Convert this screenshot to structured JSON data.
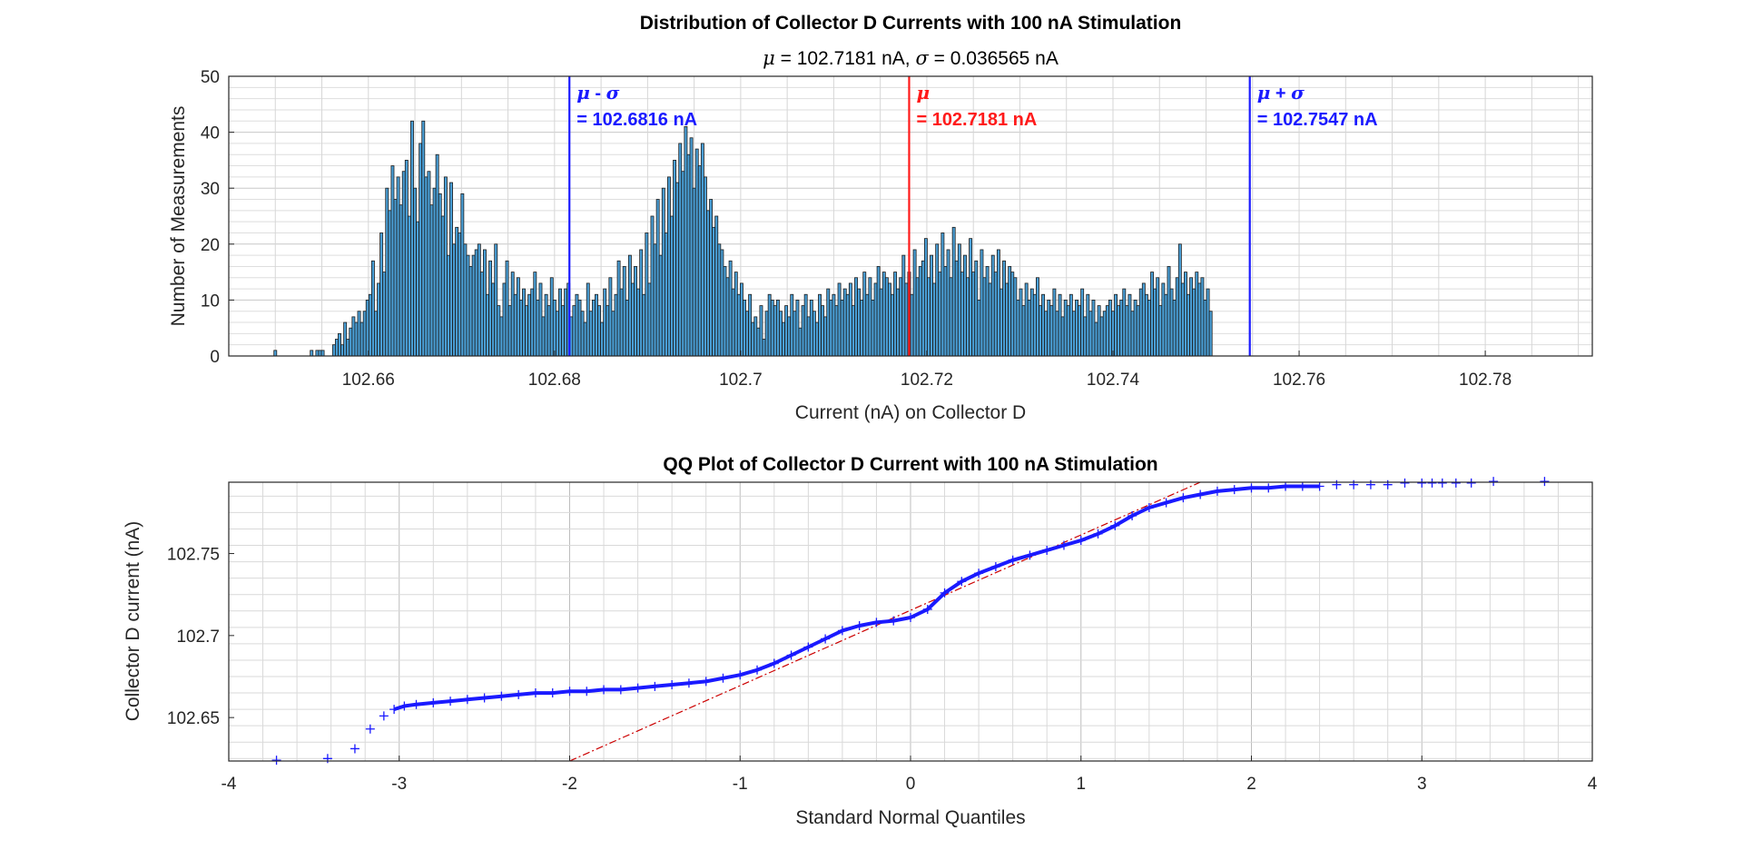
{
  "chart_data": [
    {
      "type": "bar",
      "title": "Distribution of Collector D Currents with 100 nA Stimulation",
      "subtitle": {
        "mu_symbol": "μ",
        "mu_text": " = 102.7181 nA, ",
        "sigma_symbol": "σ",
        "sigma_text": " = 0.036565 nA"
      },
      "xlabel": "Current (nA) on Collector D",
      "ylabel": "Number of Measurements",
      "xlim": [
        102.645,
        102.7915
      ],
      "ylim": [
        0,
        50
      ],
      "xticks": [
        102.66,
        102.68,
        102.7,
        102.72,
        102.74,
        102.76,
        102.78
      ],
      "xtick_labels": [
        "102.66",
        "102.68",
        "102.7",
        "102.72",
        "102.74",
        "102.76",
        "102.78"
      ],
      "yticks": [
        0,
        10,
        20,
        30,
        40,
        50
      ],
      "ytick_labels": [
        "0",
        "10",
        "20",
        "30",
        "40",
        "50"
      ],
      "grid": true,
      "bin_width": 0.0003,
      "bar_color": "#4a9fd6",
      "bin_centers_start": 102.65,
      "counts": [
        1,
        0,
        0,
        0,
        0,
        0,
        0,
        0,
        0,
        0,
        0,
        0,
        0,
        1,
        0,
        1,
        1,
        1,
        0,
        0,
        0,
        2,
        3,
        4,
        2,
        6,
        3,
        5,
        7,
        6,
        8,
        6,
        8,
        10,
        11,
        17,
        8,
        13,
        22,
        15,
        30,
        26,
        34,
        28,
        32,
        27,
        33,
        35,
        25,
        42,
        30,
        24,
        38,
        42,
        32,
        33,
        27,
        30,
        36,
        29,
        25,
        32,
        18,
        31,
        20,
        23,
        22,
        29,
        20,
        18,
        16,
        18,
        19,
        20,
        15,
        19,
        11,
        17,
        13,
        20,
        9,
        7,
        13,
        17,
        9,
        15,
        11,
        14,
        10,
        12,
        9,
        11,
        12,
        15,
        10,
        13,
        7,
        11,
        9,
        14,
        10,
        8,
        12,
        9,
        12,
        13,
        7,
        9,
        11,
        10,
        8,
        6,
        13,
        8,
        10,
        11,
        9,
        6,
        12,
        9,
        14,
        8,
        11,
        17,
        12,
        16,
        10,
        18,
        13,
        16,
        12,
        19,
        11,
        22,
        13,
        25,
        20,
        28,
        18,
        30,
        22,
        32,
        25,
        35,
        31,
        38,
        33,
        41,
        36,
        39,
        30,
        37,
        34,
        38,
        32,
        26,
        28,
        23,
        25,
        20,
        19,
        16,
        14,
        17,
        12,
        15,
        11,
        13,
        10,
        8,
        11,
        6,
        7,
        5,
        9,
        3,
        8,
        11,
        10,
        9,
        10,
        8,
        6,
        9,
        7,
        11,
        8,
        10,
        5,
        9,
        11,
        7,
        10,
        8,
        6,
        11,
        9,
        7,
        12,
        10,
        11,
        9,
        13,
        10,
        12,
        11,
        13,
        9,
        14,
        12,
        10,
        15,
        11,
        14,
        10,
        13,
        16,
        12,
        15,
        14,
        13,
        11,
        15,
        12,
        14,
        18,
        13,
        15,
        11,
        19,
        14,
        16,
        17,
        21,
        14,
        18,
        13,
        20,
        15,
        22,
        16,
        19,
        14,
        23,
        17,
        20,
        15,
        18,
        14,
        21,
        15,
        17,
        10,
        19,
        14,
        16,
        13,
        18,
        15,
        19,
        12,
        17,
        13,
        16,
        15,
        14,
        10,
        12,
        9,
        13,
        10,
        12,
        11,
        14,
        9,
        11,
        8,
        10,
        9,
        12,
        8,
        11,
        7,
        10,
        9,
        11,
        8,
        10,
        9,
        12,
        7,
        11,
        8,
        10,
        6,
        9,
        7,
        8,
        9,
        10,
        8,
        11,
        9,
        10,
        12,
        9,
        11,
        8,
        10,
        9,
        12,
        13,
        11,
        10,
        15,
        12,
        14,
        9,
        13,
        11,
        16,
        12,
        10,
        14,
        20,
        13,
        15,
        11,
        14,
        12,
        15,
        13,
        14,
        10,
        12,
        8
      ],
      "annotations": [
        {
          "symbol": "μ",
          "op": " - ",
          "sym2": "σ",
          "label": "= 102.6816 nA",
          "x": 102.6816,
          "color": "#1a1aff"
        },
        {
          "symbol": "μ",
          "op": "",
          "sym2": "",
          "label": "= 102.7181 nA",
          "x": 102.7181,
          "color": "#ff1a1a"
        },
        {
          "symbol": "μ",
          "op": " + ",
          "sym2": "σ",
          "label": "= 102.7547 nA",
          "x": 102.7547,
          "color": "#1a1aff"
        }
      ]
    },
    {
      "type": "scatter",
      "title": "QQ Plot of Collector D Current with 100 nA Stimulation",
      "xlabel": "Standard Normal Quantiles",
      "ylabel": "Collector D current (nA)",
      "xlim": [
        -4,
        4
      ],
      "ylim": [
        102.6235,
        102.7935
      ],
      "xticks": [
        -4,
        -3,
        -2,
        -1,
        0,
        1,
        2,
        3,
        4
      ],
      "xtick_labels": [
        "-4",
        "-3",
        "-2",
        "-1",
        "0",
        "1",
        "2",
        "3",
        "4"
      ],
      "yticks": [
        102.65,
        102.7,
        102.75
      ],
      "ytick_labels": [
        "102.65",
        "102.7",
        "102.75"
      ],
      "grid": true,
      "marker": "+",
      "marker_color": "#1a1aff",
      "reference_line": {
        "x": [
          -2.0,
          1.7
        ],
        "y": [
          102.6235,
          102.7935
        ],
        "color": "#cc0000",
        "style": "dash-dot"
      },
      "points": [
        [
          -3.72,
          102.624
        ],
        [
          -3.42,
          102.625
        ],
        [
          -3.26,
          102.631
        ],
        [
          -3.17,
          102.643
        ],
        [
          -3.09,
          102.651
        ],
        [
          -3.03,
          102.655
        ],
        [
          -2.97,
          102.657
        ],
        [
          -2.9,
          102.658
        ],
        [
          -2.8,
          102.659
        ],
        [
          -2.7,
          102.66
        ],
        [
          -2.6,
          102.661
        ],
        [
          -2.5,
          102.662
        ],
        [
          -2.4,
          102.663
        ],
        [
          -2.3,
          102.664
        ],
        [
          -2.2,
          102.665
        ],
        [
          -2.1,
          102.665
        ],
        [
          -2.0,
          102.666
        ],
        [
          -1.9,
          102.666
        ],
        [
          -1.8,
          102.667
        ],
        [
          -1.7,
          102.667
        ],
        [
          -1.6,
          102.668
        ],
        [
          -1.5,
          102.669
        ],
        [
          -1.4,
          102.67
        ],
        [
          -1.3,
          102.671
        ],
        [
          -1.2,
          102.672
        ],
        [
          -1.1,
          102.674
        ],
        [
          -1.0,
          102.676
        ],
        [
          -0.9,
          102.679
        ],
        [
          -0.8,
          102.683
        ],
        [
          -0.7,
          102.688
        ],
        [
          -0.6,
          102.693
        ],
        [
          -0.5,
          102.698
        ],
        [
          -0.4,
          102.703
        ],
        [
          -0.3,
          102.706
        ],
        [
          -0.2,
          102.708
        ],
        [
          -0.1,
          102.709
        ],
        [
          0.0,
          102.711
        ],
        [
          0.1,
          102.716
        ],
        [
          0.2,
          102.726
        ],
        [
          0.3,
          102.733
        ],
        [
          0.4,
          102.738
        ],
        [
          0.5,
          102.742
        ],
        [
          0.6,
          102.746
        ],
        [
          0.7,
          102.749
        ],
        [
          0.8,
          102.752
        ],
        [
          0.9,
          102.755
        ],
        [
          1.0,
          102.758
        ],
        [
          1.1,
          102.762
        ],
        [
          1.2,
          102.767
        ],
        [
          1.3,
          102.773
        ],
        [
          1.4,
          102.778
        ],
        [
          1.5,
          102.781
        ],
        [
          1.6,
          102.784
        ],
        [
          1.7,
          102.786
        ],
        [
          1.8,
          102.788
        ],
        [
          1.9,
          102.789
        ],
        [
          2.0,
          102.79
        ],
        [
          2.1,
          102.79
        ],
        [
          2.2,
          102.791
        ],
        [
          2.3,
          102.791
        ],
        [
          2.4,
          102.791
        ],
        [
          2.5,
          102.792
        ],
        [
          2.6,
          102.792
        ],
        [
          2.7,
          102.792
        ],
        [
          2.8,
          102.792
        ],
        [
          2.9,
          102.793
        ],
        [
          3.0,
          102.793
        ],
        [
          3.06,
          102.793
        ],
        [
          3.12,
          102.793
        ],
        [
          3.2,
          102.793
        ],
        [
          3.29,
          102.793
        ],
        [
          3.42,
          102.794
        ],
        [
          3.72,
          102.794
        ]
      ]
    }
  ]
}
